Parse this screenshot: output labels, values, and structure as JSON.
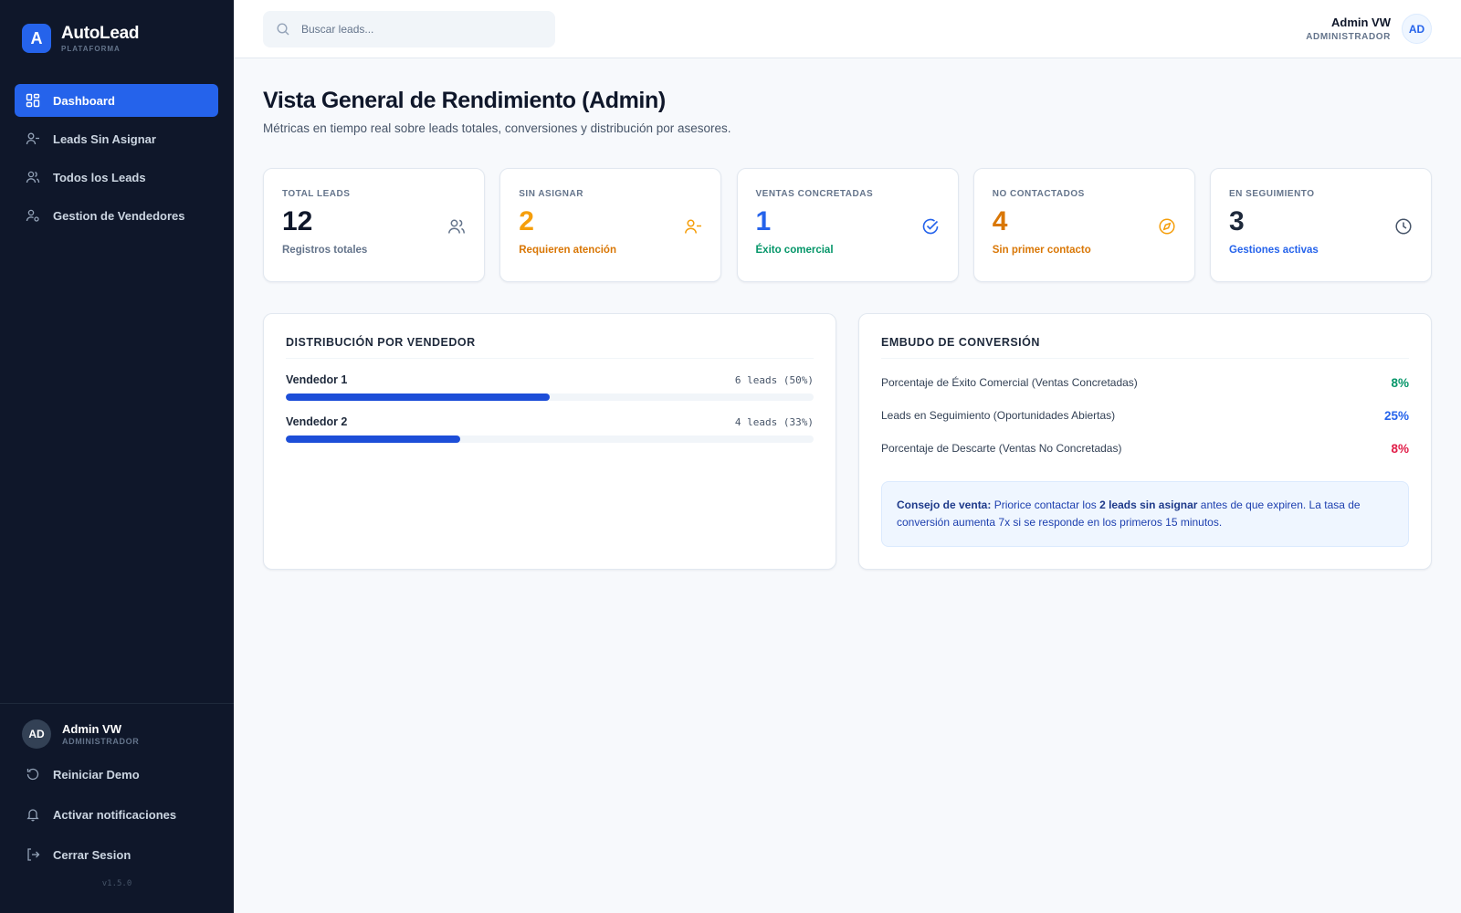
{
  "brand": {
    "logo_letter": "A",
    "name": "AutoLead",
    "subtitle": "PLATAFORMA"
  },
  "sidebar": {
    "items": [
      {
        "label": "Dashboard",
        "icon": "dashboard-grid-icon",
        "active": true
      },
      {
        "label": "Leads Sin Asignar",
        "icon": "user-minus-icon"
      },
      {
        "label": "Todos los Leads",
        "icon": "users-icon"
      },
      {
        "label": "Gestion de Vendedores",
        "icon": "user-cog-icon"
      }
    ],
    "user": {
      "initials": "AD",
      "name": "Admin VW",
      "role": "ADMINISTRADOR"
    },
    "actions": [
      {
        "label": "Reiniciar Demo",
        "icon": "refresh-icon"
      },
      {
        "label": "Activar notificaciones",
        "icon": "bell-icon"
      },
      {
        "label": "Cerrar Sesion",
        "icon": "logout-icon"
      }
    ],
    "version": "v1.5.0"
  },
  "topbar": {
    "search_placeholder": "Buscar leads...",
    "user": {
      "name": "Admin VW",
      "role": "ADMINISTRADOR",
      "initials": "AD"
    }
  },
  "page": {
    "title": "Vista General de Rendimiento (Admin)",
    "subtitle": "Métricas en tiempo real sobre leads totales, conversiones y distribución por asesores."
  },
  "stats": [
    {
      "label": "TOTAL LEADS",
      "value": "12",
      "note": "Registros totales",
      "color": "#0f172a",
      "note_color": "#64748b",
      "icon": "users-icon",
      "icon_color": "#64748b"
    },
    {
      "label": "SIN ASIGNAR",
      "value": "2",
      "note": "Requieren atención",
      "color": "#f59e0b",
      "note_color": "#d97706",
      "icon": "user-minus-icon",
      "icon_color": "#f59e0b"
    },
    {
      "label": "VENTAS CONCRETADAS",
      "value": "1",
      "note": "Éxito comercial",
      "color": "#2563eb",
      "note_color": "#059669",
      "icon": "check-circle-icon",
      "icon_color": "#2563eb"
    },
    {
      "label": "NO CONTACTADOS",
      "value": "4",
      "note": "Sin primer contacto",
      "color": "#d97706",
      "note_color": "#d97706",
      "icon": "compass-icon",
      "icon_color": "#f59e0b"
    },
    {
      "label": "EN SEGUIMIENTO",
      "value": "3",
      "note": "Gestiones activas",
      "color": "#1e293b",
      "note_color": "#2563eb",
      "icon": "clock-icon",
      "icon_color": "#475569"
    }
  ],
  "distribution": {
    "title": "DISTRIBUCIÓN POR VENDEDOR",
    "rows": [
      {
        "name": "Vendedor 1",
        "count": "6 leads (50%)",
        "fraction": 0.5
      },
      {
        "name": "Vendedor 2",
        "count": "4 leads (33%)",
        "fraction": 0.33
      }
    ]
  },
  "funnel": {
    "title": "EMBUDO DE CONVERSIÓN",
    "rows": [
      {
        "label": "Porcentaje de Éxito Comercial (Ventas Concretadas)",
        "value": "8%",
        "color": "#059669"
      },
      {
        "label": "Leads en Seguimiento (Oportunidades Abiertas)",
        "value": "25%",
        "color": "#2563eb"
      },
      {
        "label": "Porcentaje de Descarte (Ventas No Concretadas)",
        "value": "8%",
        "color": "#e11d48"
      }
    ],
    "tip": {
      "lead": "Consejo de venta:",
      "text1": " Priorice contactar los ",
      "highlight": "2 leads sin asignar",
      "text2": " antes de que expiren. La tasa de conversión aumenta 7x si se responde en los primeros 15 minutos."
    }
  }
}
